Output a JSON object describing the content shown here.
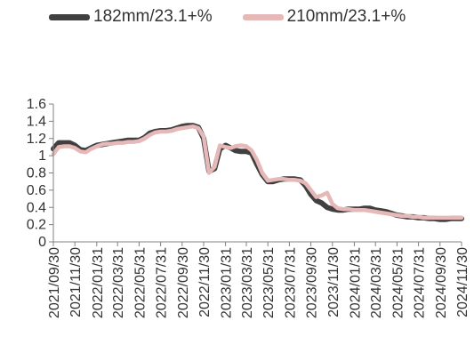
{
  "chart_data": {
    "type": "line",
    "title": "",
    "xlabel": "",
    "ylabel": "",
    "ylim": [
      0,
      1.6
    ],
    "yticks": [
      "0",
      "0.2",
      "0.4",
      "0.6",
      "0.8",
      "1",
      "1.2",
      "1.4",
      "1.6"
    ],
    "xticks": [
      "2021/09/30",
      "2021/11/30",
      "2022/01/31",
      "2022/03/31",
      "2022/05/31",
      "2022/07/31",
      "2022/09/30",
      "2022/11/30",
      "2023/01/31",
      "2023/03/31",
      "2023/05/31",
      "2023/07/31",
      "2023/09/30",
      "2023/11/30",
      "2024/01/31",
      "2024/03/31",
      "2024/05/31",
      "2024/07/31",
      "2024/09/30",
      "2024/11/30"
    ],
    "legend_position": "top",
    "grid": false,
    "x": [
      "2021/09/30",
      "2021/10/15",
      "2021/10/31",
      "2021/11/15",
      "2021/11/30",
      "2021/12/15",
      "2021/12/31",
      "2022/01/15",
      "2022/01/31",
      "2022/02/15",
      "2022/02/28",
      "2022/03/15",
      "2022/03/31",
      "2022/04/15",
      "2022/04/30",
      "2022/05/15",
      "2022/05/31",
      "2022/06/15",
      "2022/06/30",
      "2022/07/15",
      "2022/07/31",
      "2022/08/15",
      "2022/08/31",
      "2022/09/15",
      "2022/09/30",
      "2022/10/15",
      "2022/10/31",
      "2022/11/15",
      "2022/11/30",
      "2022/12/15",
      "2022/12/31",
      "2023/01/15",
      "2023/01/31",
      "2023/02/15",
      "2023/02/28",
      "2023/03/15",
      "2023/03/31",
      "2023/04/15",
      "2023/04/30",
      "2023/05/15",
      "2023/05/31",
      "2023/06/15",
      "2023/06/30",
      "2023/07/15",
      "2023/07/31",
      "2023/08/15",
      "2023/08/31",
      "2023/09/15",
      "2023/09/30",
      "2023/10/15",
      "2023/10/31",
      "2023/11/15",
      "2023/11/30",
      "2023/12/15",
      "2023/12/31",
      "2024/01/15",
      "2024/01/31",
      "2024/02/15",
      "2024/02/29",
      "2024/03/15",
      "2024/03/31",
      "2024/04/15",
      "2024/04/30",
      "2024/05/15",
      "2024/05/31",
      "2024/06/15",
      "2024/06/30",
      "2024/07/15",
      "2024/07/31",
      "2024/08/15",
      "2024/08/31",
      "2024/09/15",
      "2024/09/30",
      "2024/10/15",
      "2024/10/31",
      "2024/11/15",
      "2024/11/30"
    ],
    "series": [
      {
        "name": "182mm/23.1+%",
        "color": "#404040",
        "values": [
          1.08,
          1.15,
          1.15,
          1.15,
          1.12,
          1.07,
          1.06,
          1.09,
          1.12,
          1.13,
          1.14,
          1.15,
          1.16,
          1.17,
          1.18,
          1.18,
          1.18,
          1.21,
          1.26,
          1.28,
          1.29,
          1.29,
          1.3,
          1.32,
          1.34,
          1.35,
          1.35,
          1.33,
          1.2,
          0.82,
          0.85,
          1.08,
          1.12,
          1.09,
          1.06,
          1.05,
          1.05,
          1.03,
          0.9,
          0.78,
          0.7,
          0.7,
          0.72,
          0.73,
          0.73,
          0.73,
          0.72,
          0.65,
          0.55,
          0.48,
          0.45,
          0.4,
          0.38,
          0.37,
          0.37,
          0.38,
          0.38,
          0.38,
          0.39,
          0.39,
          0.37,
          0.36,
          0.35,
          0.33,
          0.31,
          0.3,
          0.29,
          0.29,
          0.28,
          0.28,
          0.27,
          0.27,
          0.26,
          0.26,
          0.27,
          0.27,
          0.27
        ]
      },
      {
        "name": "210mm/23.1+%",
        "color": "#e6b8b8",
        "values": [
          1.02,
          1.1,
          1.11,
          1.11,
          1.09,
          1.05,
          1.04,
          1.08,
          1.11,
          1.13,
          1.14,
          1.14,
          1.15,
          1.15,
          1.16,
          1.16,
          1.17,
          1.2,
          1.24,
          1.27,
          1.28,
          1.28,
          1.29,
          1.31,
          1.32,
          1.33,
          1.34,
          1.32,
          1.22,
          0.8,
          0.87,
          1.12,
          1.1,
          1.09,
          1.11,
          1.12,
          1.11,
          1.06,
          0.95,
          0.8,
          0.71,
          0.72,
          0.73,
          0.73,
          0.72,
          0.72,
          0.71,
          0.68,
          0.6,
          0.52,
          0.54,
          0.57,
          0.44,
          0.39,
          0.38,
          0.38,
          0.37,
          0.37,
          0.37,
          0.36,
          0.35,
          0.34,
          0.33,
          0.32,
          0.31,
          0.3,
          0.3,
          0.29,
          0.29,
          0.28,
          0.28,
          0.28,
          0.28,
          0.28,
          0.28,
          0.28,
          0.28
        ]
      }
    ]
  }
}
